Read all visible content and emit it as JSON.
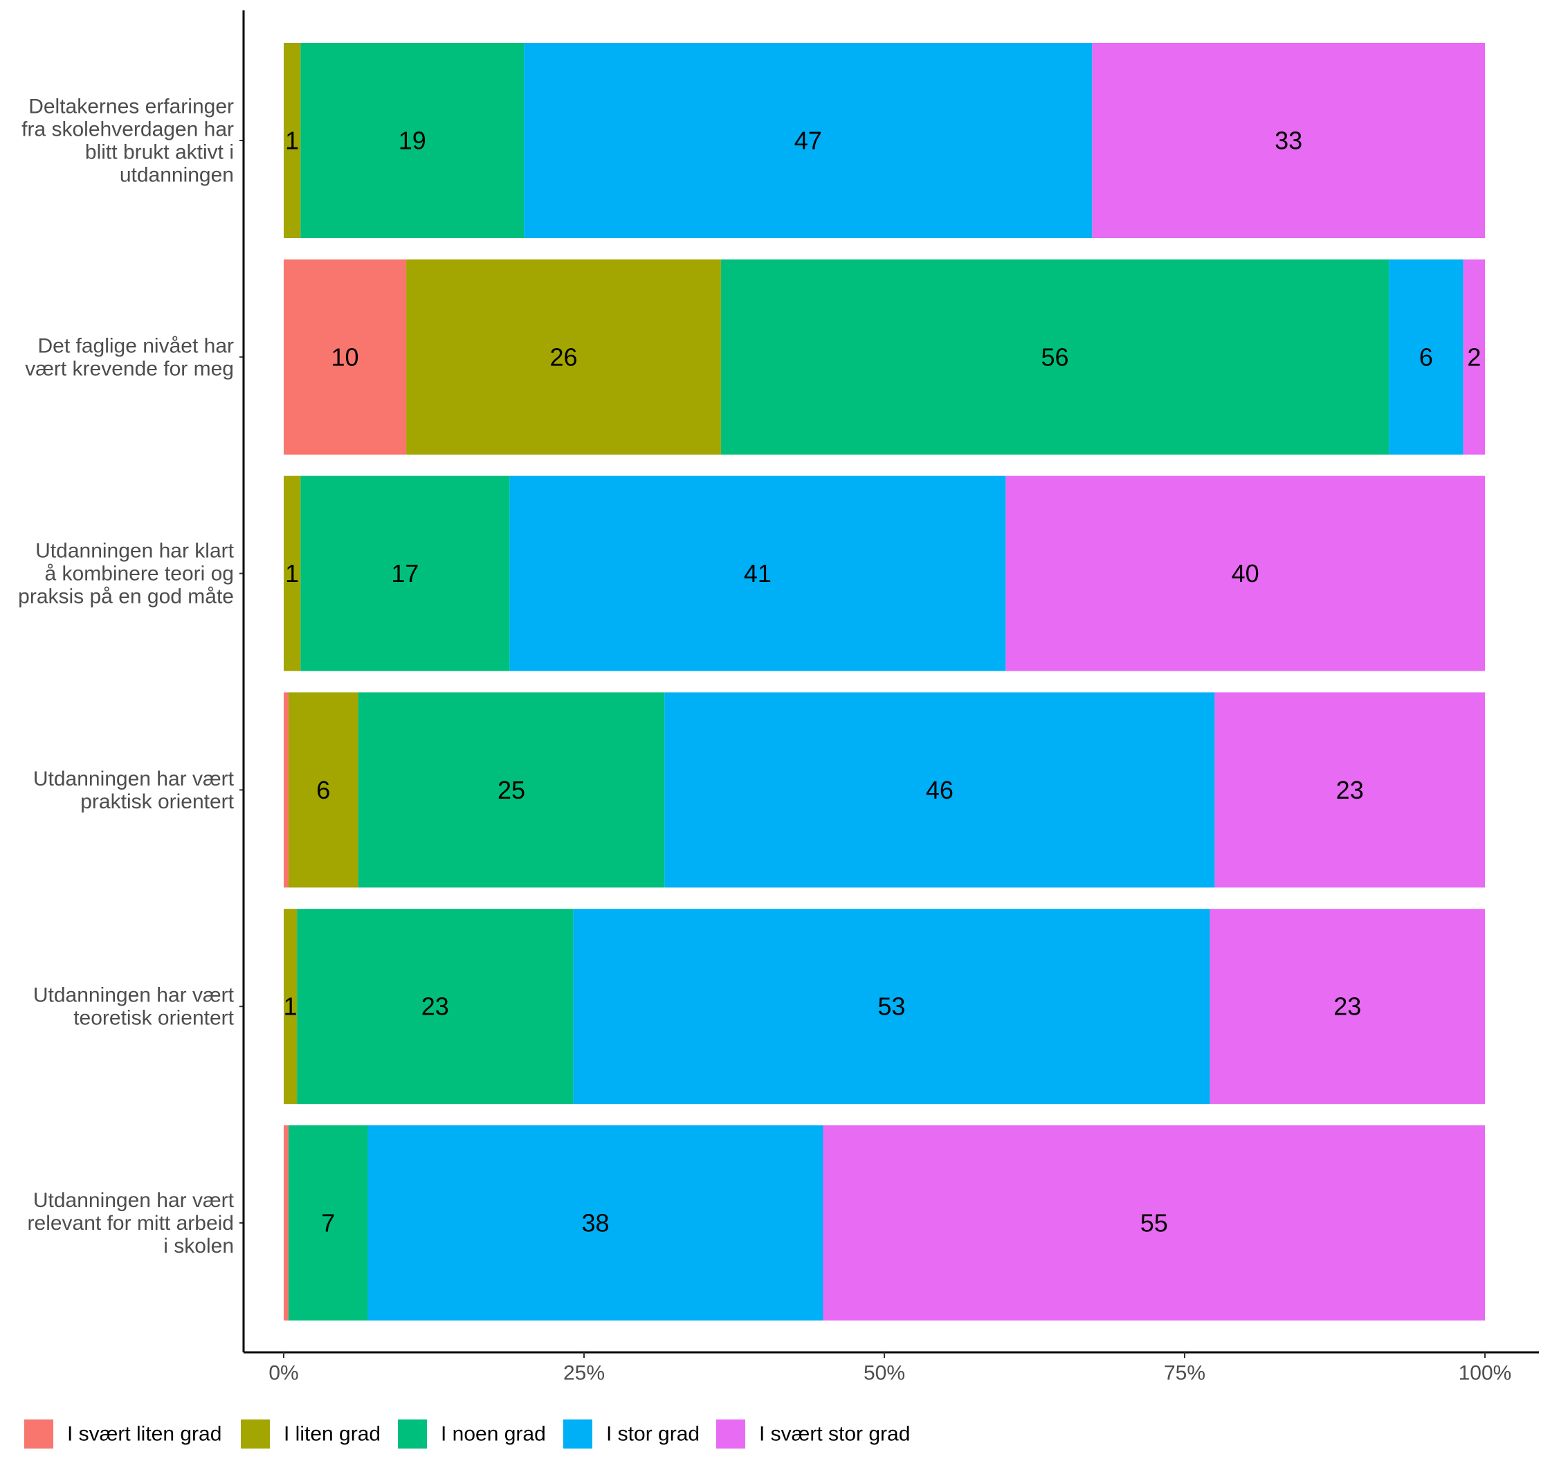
{
  "chart_data": {
    "type": "bar",
    "orientation": "horizontal",
    "stacked": true,
    "percent_stacked": true,
    "categories": [
      [
        "Deltakernes erfaringer",
        "fra skolehverdagen har",
        "blitt brukt aktivt i",
        "utdanningen"
      ],
      [
        "Det faglige nivået har",
        "vært krevende for meg"
      ],
      [
        "Utdanningen har klart",
        "å kombinere teori og",
        "praksis på en god måte"
      ],
      [
        "Utdanningen har vært",
        "praktisk orientert"
      ],
      [
        "Utdanningen har vært",
        "teoretisk orientert"
      ],
      [
        "Utdanningen har vært",
        "relevant for mitt arbeid",
        "i skolen"
      ]
    ],
    "series": [
      {
        "name": "I svært liten grad",
        "color": "#F8766D",
        "values": [
          0,
          10.2,
          0,
          0.4,
          0,
          0.4
        ],
        "labels": [
          "",
          "10",
          "",
          "",
          "",
          ""
        ]
      },
      {
        "name": "I liten grad",
        "color": "#A3A500",
        "values": [
          1.4,
          26.2,
          1.4,
          5.8,
          1.1,
          0
        ],
        "labels": [
          "1",
          "26",
          "1",
          "6",
          "1",
          ""
        ]
      },
      {
        "name": "I noen grad",
        "color": "#00BF7D",
        "values": [
          18.6,
          55.6,
          17.4,
          25.5,
          23,
          6.6
        ],
        "labels": [
          "19",
          "56",
          "17",
          "25",
          "23",
          "7"
        ]
      },
      {
        "name": "I stor grad",
        "color": "#00B0F6",
        "values": [
          47.3,
          6.2,
          41.3,
          45.8,
          53,
          37.9
        ],
        "labels": [
          "47",
          "6",
          "41",
          "46",
          "53",
          "38"
        ]
      },
      {
        "name": "I svært stor grad",
        "color": "#E76BF3",
        "values": [
          32.7,
          1.8,
          39.9,
          22.5,
          22.9,
          55.1
        ],
        "labels": [
          "33",
          "2",
          "40",
          "23",
          "23",
          "55"
        ]
      }
    ],
    "x_ticks": [
      "0%",
      "25%",
      "50%",
      "75%",
      "100%"
    ],
    "xlim": [
      0,
      100
    ],
    "xlabel": "",
    "ylabel": "",
    "grid": false,
    "legend_position": "bottom"
  }
}
